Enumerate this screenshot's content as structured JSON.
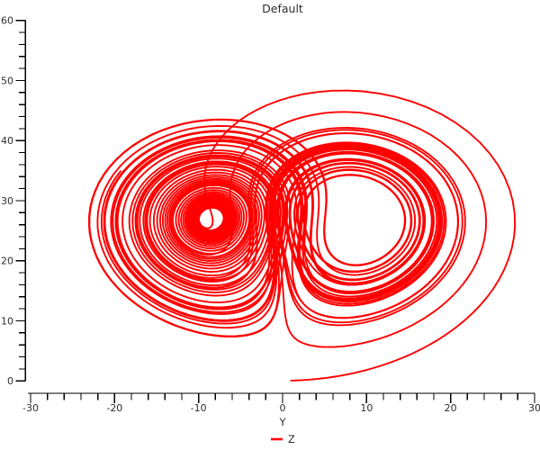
{
  "figure": {
    "title": "Default",
    "background": "#ffffff",
    "text_color": "#2e2e2e",
    "axis_color": "#000000"
  },
  "chart_data": {
    "type": "line",
    "title": "Default",
    "xlabel": "Y",
    "ylabel": "",
    "xlim": [
      -30,
      30
    ],
    "ylim": [
      0,
      60
    ],
    "x_major_ticks": [
      -30,
      -20,
      -10,
      0,
      10,
      20,
      30
    ],
    "y_major_ticks": [
      0,
      10,
      20,
      30,
      40,
      50,
      60
    ],
    "minor_tick_step": 2,
    "grid": false,
    "legend": {
      "position": "bottom-center",
      "entries": [
        {
          "label": "Z",
          "color": "#ff0000"
        }
      ]
    },
    "series": [
      {
        "name": "Z",
        "color": "#ff0000",
        "stroke_width": 1.9,
        "description": "Lorenz attractor trajectory projected onto the (Y,Z) plane; enters at bottom near (1,0), sweeps right to Y~29, then winds around the two lobes centered near (-8.5,27) and (8.5,27), peaking near Z~53.5",
        "generator": {
          "system": "lorenz",
          "sigma": 10,
          "rho": 28,
          "beta": 2.6666666667,
          "initial_xyz": [
            1.0,
            1.0,
            0.05
          ],
          "dt": 0.005,
          "steps": 11000,
          "plot": [
            "y",
            "z"
          ]
        }
      }
    ]
  }
}
